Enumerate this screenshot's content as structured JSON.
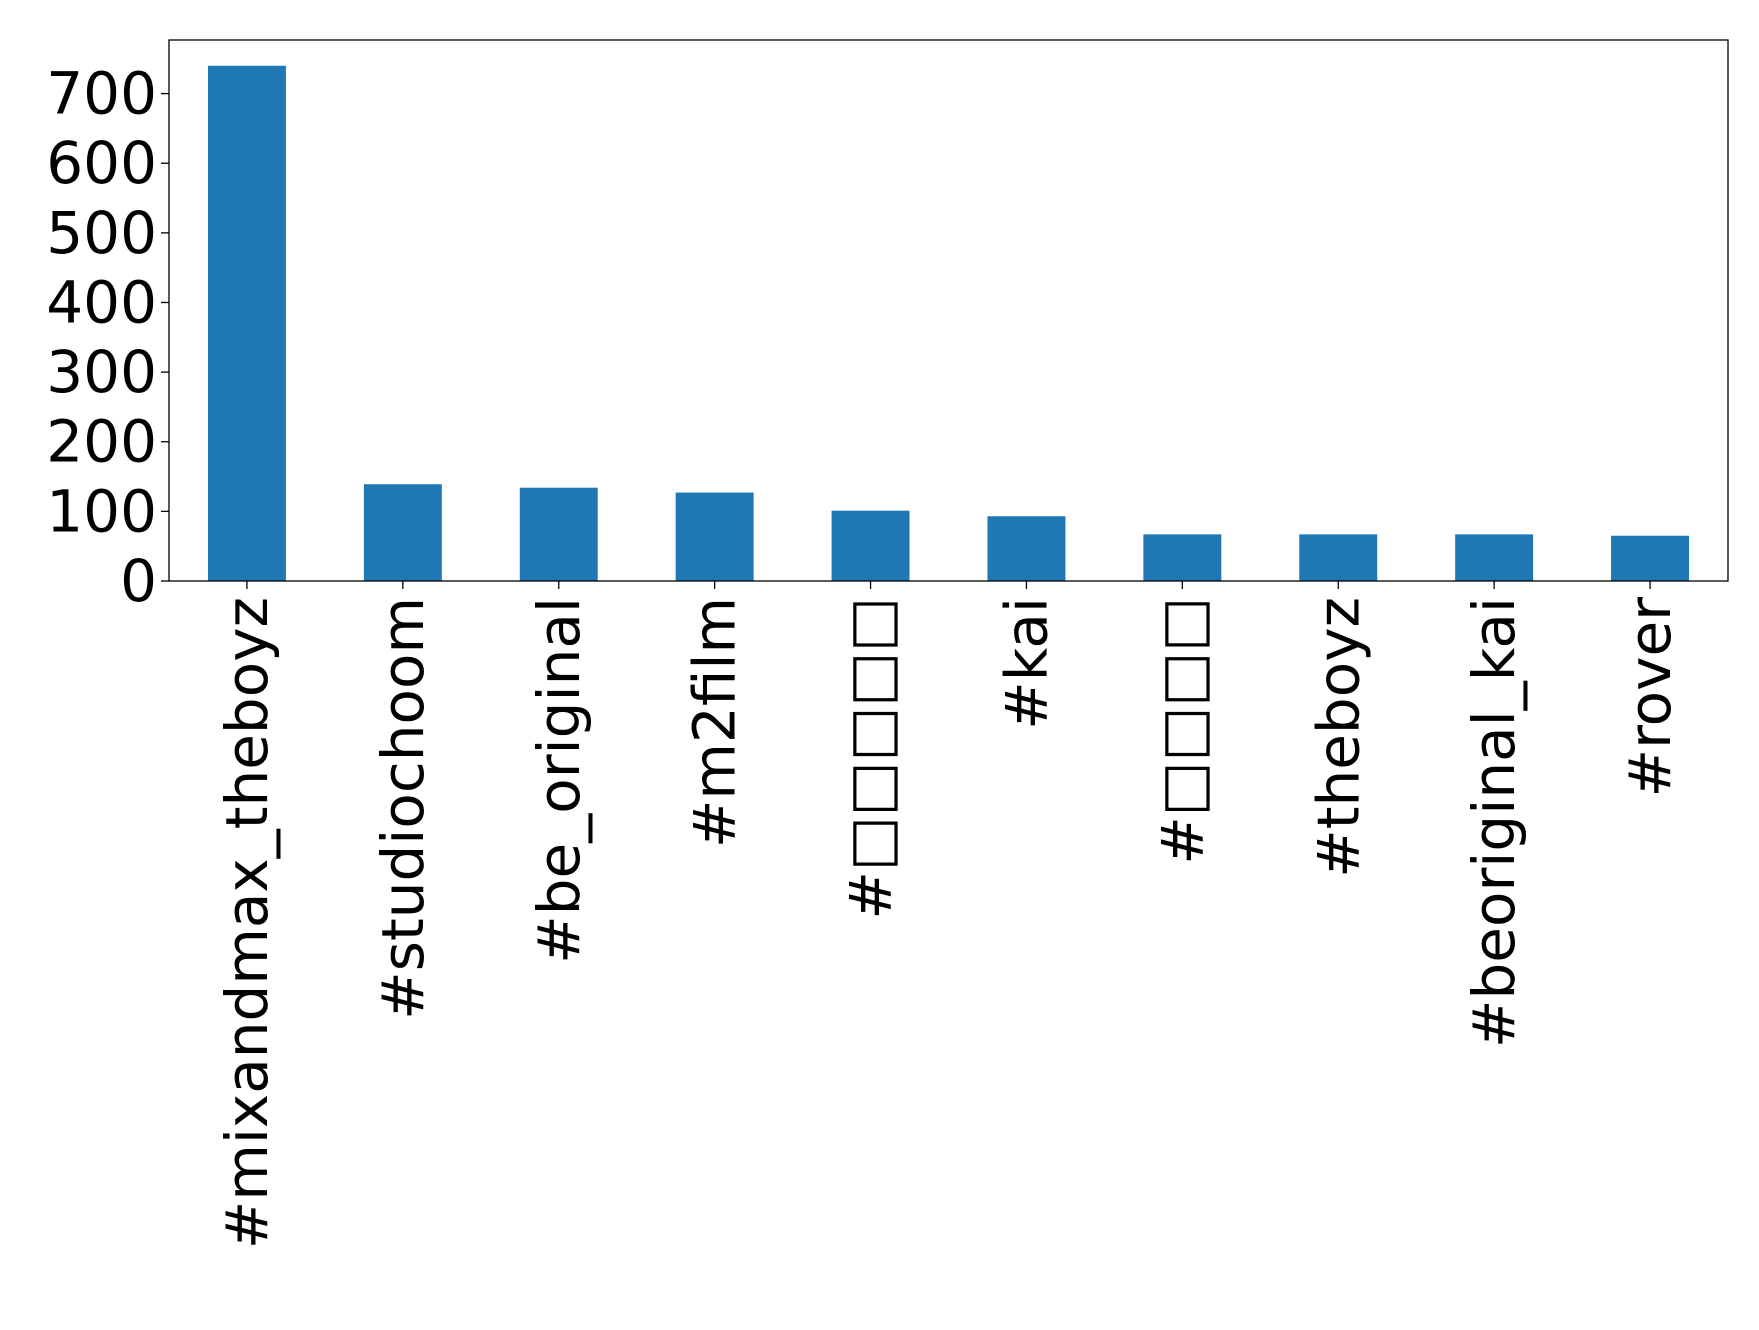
{
  "chart_data": {
    "type": "bar",
    "title": "",
    "xlabel": "",
    "ylabel": "",
    "categories": [
      "#mixandmax_theboyz",
      "#studiochoom",
      "#be_original",
      "#m2film",
      "#□□□□□",
      "#kai",
      "#□□□□",
      "#theboyz",
      "#beoriginal_kai",
      "#rover"
    ],
    "values": [
      740,
      139,
      134,
      127,
      101,
      93,
      67,
      67,
      67,
      65
    ],
    "ylim": [
      0,
      777
    ],
    "yticks": [
      0,
      100,
      200,
      300,
      400,
      500,
      600,
      700
    ],
    "grid": false,
    "legend": "none",
    "bar_color": "#1f77b4"
  }
}
